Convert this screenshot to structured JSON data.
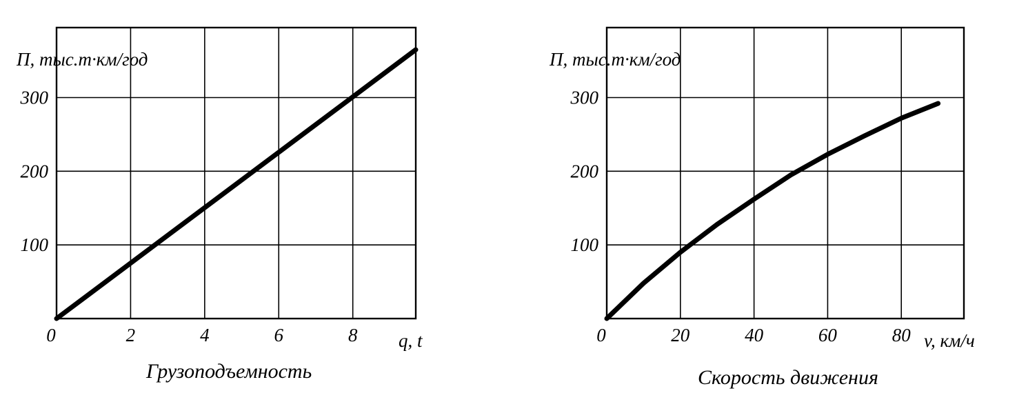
{
  "chart_data": [
    {
      "type": "line",
      "title": "",
      "ylabel": "П, тыс.т·км/год",
      "xlabel": "q, t",
      "caption": "Грузоподъемность",
      "x_ticks": [
        "0",
        "2",
        "4",
        "6",
        "8"
      ],
      "y_ticks": [
        "100",
        "200",
        "300"
      ],
      "xlim": [
        0,
        9.7
      ],
      "ylim": [
        0,
        395
      ],
      "grid": true,
      "series": [
        {
          "x": [
            0,
            9.7
          ],
          "y": [
            0,
            365
          ]
        }
      ]
    },
    {
      "type": "line",
      "title": "",
      "ylabel": "П, тыс.т·км/год",
      "xlabel": "v, км/ч",
      "caption": "Скорость движения",
      "x_ticks": [
        "0",
        "20",
        "40",
        "60",
        "80"
      ],
      "y_ticks": [
        "100",
        "200",
        "300"
      ],
      "xlim": [
        0,
        97
      ],
      "ylim": [
        0,
        395
      ],
      "grid": true,
      "series": [
        {
          "x": [
            0,
            10,
            20,
            30,
            40,
            50,
            60,
            70,
            80,
            90
          ],
          "y": [
            0,
            48,
            90,
            128,
            162,
            195,
            223,
            248,
            272,
            292
          ]
        }
      ]
    }
  ]
}
